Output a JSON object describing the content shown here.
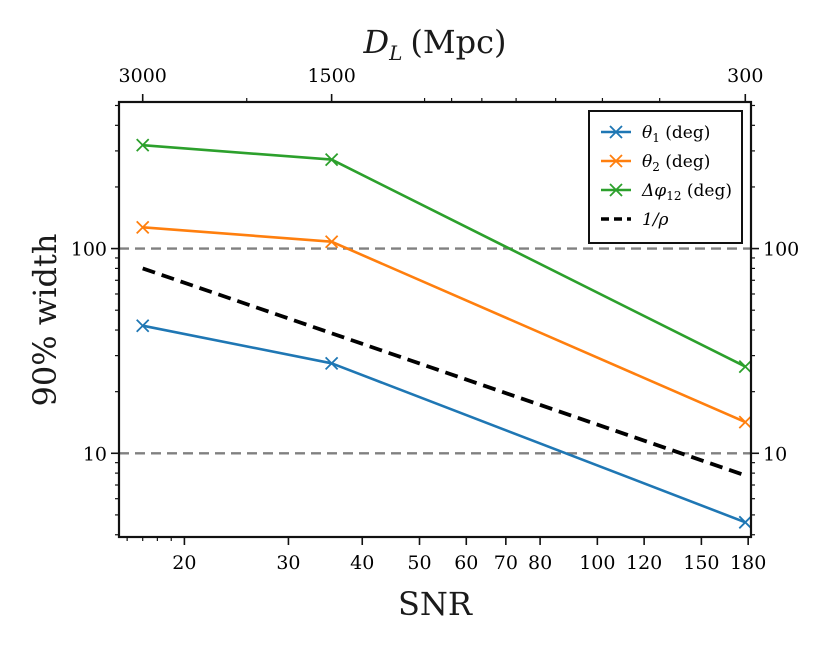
{
  "chart_data": {
    "type": "line",
    "title": "",
    "xlabel": "SNR",
    "ylabel": "90% width",
    "top_axis_label": "D_L (Mpc)",
    "top_axis_label_parts": {
      "main": "D",
      "sub": "L",
      "unit": "(Mpc)"
    },
    "xscale": "log",
    "yscale": "log",
    "xlim": [
      15.5,
      182
    ],
    "ylim": [
      3.9,
      520
    ],
    "x_ticks": [
      20,
      30,
      40,
      50,
      60,
      70,
      80,
      100,
      120,
      150,
      180
    ],
    "x_tick_labels": [
      "20",
      "30",
      "40",
      "50",
      "60",
      "70",
      "80",
      "100",
      "120",
      "150",
      "180"
    ],
    "top_ticks": [
      3000,
      1500,
      300
    ],
    "top_tick_labels": [
      "3000",
      "1500",
      "300"
    ],
    "top_tick_snr": [
      17,
      35.5,
      178
    ],
    "y_ticks": [
      10,
      100
    ],
    "y_tick_labels": [
      "10",
      "100"
    ],
    "hlines": [
      10,
      100
    ],
    "series": [
      {
        "name": "θ1 (deg)",
        "color": "#1f77b4",
        "marker": "x",
        "x": [
          17,
          35.5,
          178
        ],
        "values": [
          42,
          27.5,
          4.6
        ]
      },
      {
        "name": "θ2 (deg)",
        "color": "#ff7f0e",
        "marker": "x",
        "x": [
          17,
          35.5,
          178
        ],
        "values": [
          127,
          108,
          14.2
        ]
      },
      {
        "name": "Δφ12 (deg)",
        "color": "#2ca02c",
        "marker": "x",
        "x": [
          17,
          35.5,
          178
        ],
        "values": [
          320,
          272,
          26.5
        ]
      },
      {
        "name": "1/ρ",
        "color": "#000000",
        "style": "dashed",
        "x": [
          17,
          178
        ],
        "values": [
          80,
          7.8
        ]
      }
    ],
    "legend": {
      "position": "top-right",
      "entries": [
        {
          "sym": "θ",
          "sub": "1",
          "rest": " (deg)"
        },
        {
          "sym": "θ",
          "sub": "2",
          "rest": " (deg)"
        },
        {
          "sym": "Δφ",
          "sub": "12",
          "rest": " (deg)"
        },
        {
          "sym": "1/ρ",
          "sub": "",
          "rest": ""
        }
      ]
    }
  }
}
